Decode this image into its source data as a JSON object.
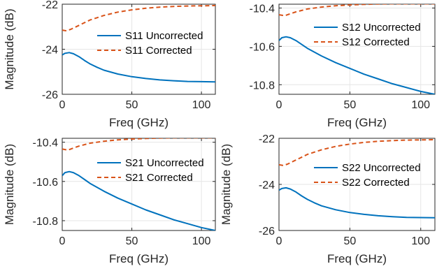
{
  "colors": {
    "uncorrected": "#0072BD",
    "corrected": "#D95319",
    "axis": "#262626",
    "grid": "#e6e6e6"
  },
  "chart_data": [
    {
      "type": "line",
      "xlabel": "Freq (GHz)",
      "ylabel": "Magnitude (dB)",
      "xlim": [
        0,
        110
      ],
      "ylim": [
        -26,
        -22
      ],
      "xticks": [
        0,
        50,
        100
      ],
      "yticks": [
        -26,
        -24,
        -22
      ],
      "grid": true,
      "legend_position": "upper-middle",
      "series": [
        {
          "name": "S11 Uncorrected",
          "style": "solid",
          "x": [
            0,
            2,
            5,
            8,
            12,
            16,
            20,
            25,
            30,
            40,
            50,
            60,
            70,
            80,
            90,
            100,
            110
          ],
          "y": [
            -24.25,
            -24.18,
            -24.15,
            -24.2,
            -24.33,
            -24.5,
            -24.65,
            -24.8,
            -24.93,
            -25.1,
            -25.22,
            -25.3,
            -25.36,
            -25.4,
            -25.43,
            -25.44,
            -25.45
          ]
        },
        {
          "name": "S11 Corrected",
          "style": "dashed",
          "x": [
            0,
            3,
            6,
            10,
            15,
            20,
            30,
            40,
            50,
            60,
            70,
            80,
            90,
            100,
            110
          ],
          "y": [
            -23.15,
            -23.18,
            -23.12,
            -23.0,
            -22.85,
            -22.7,
            -22.5,
            -22.35,
            -22.25,
            -22.18,
            -22.13,
            -22.1,
            -22.08,
            -22.07,
            -22.06
          ]
        }
      ]
    },
    {
      "type": "line",
      "xlabel": "Freq (GHz)",
      "ylabel": "",
      "xlim": [
        0,
        110
      ],
      "ylim": [
        -10.85,
        -10.38
      ],
      "xticks": [
        0,
        50,
        100
      ],
      "yticks": [
        -10.8,
        -10.6,
        -10.4
      ],
      "grid": true,
      "legend_position": "upper-middle",
      "series": [
        {
          "name": "S12 Uncorrected",
          "style": "solid",
          "x": [
            0,
            2,
            5,
            8,
            12,
            16,
            20,
            30,
            40,
            50,
            60,
            70,
            80,
            90,
            100,
            110
          ],
          "y": [
            -10.57,
            -10.555,
            -10.55,
            -10.555,
            -10.57,
            -10.59,
            -10.61,
            -10.65,
            -10.685,
            -10.715,
            -10.745,
            -10.77,
            -10.795,
            -10.815,
            -10.835,
            -10.85
          ]
        },
        {
          "name": "S12 Corrected",
          "style": "dashed",
          "x": [
            0,
            4,
            8,
            12,
            20,
            30,
            40,
            50,
            60,
            70,
            80,
            90,
            100,
            110
          ],
          "y": [
            -10.435,
            -10.44,
            -10.43,
            -10.42,
            -10.405,
            -10.395,
            -10.388,
            -10.384,
            -10.381,
            -10.379,
            -10.378,
            -10.378,
            -10.378,
            -10.378
          ]
        }
      ]
    },
    {
      "type": "line",
      "xlabel": "Freq (GHz)",
      "ylabel": "Magnitude (dB)",
      "xlim": [
        0,
        110
      ],
      "ylim": [
        -10.85,
        -10.38
      ],
      "xticks": [
        0,
        50,
        100
      ],
      "yticks": [
        -10.8,
        -10.6,
        -10.4
      ],
      "grid": true,
      "legend_position": "upper-middle",
      "series": [
        {
          "name": "S21 Uncorrected",
          "style": "solid",
          "x": [
            0,
            2,
            5,
            8,
            12,
            16,
            20,
            30,
            40,
            50,
            60,
            70,
            80,
            90,
            100,
            110
          ],
          "y": [
            -10.57,
            -10.555,
            -10.55,
            -10.555,
            -10.57,
            -10.59,
            -10.61,
            -10.65,
            -10.685,
            -10.715,
            -10.745,
            -10.77,
            -10.795,
            -10.815,
            -10.835,
            -10.85
          ]
        },
        {
          "name": "S21 Corrected",
          "style": "dashed",
          "x": [
            0,
            4,
            8,
            12,
            20,
            30,
            40,
            50,
            60,
            70,
            80,
            90,
            100,
            110
          ],
          "y": [
            -10.435,
            -10.44,
            -10.43,
            -10.42,
            -10.405,
            -10.395,
            -10.388,
            -10.384,
            -10.381,
            -10.379,
            -10.378,
            -10.378,
            -10.378,
            -10.378
          ]
        }
      ]
    },
    {
      "type": "line",
      "xlabel": "Freq (GHz)",
      "ylabel": "Magnitude (dB)",
      "xlim": [
        0,
        110
      ],
      "ylim": [
        -26,
        -22
      ],
      "xticks": [
        0,
        50,
        100
      ],
      "yticks": [
        -26,
        -24,
        -22
      ],
      "grid": true,
      "legend_position": "upper-middle",
      "series": [
        {
          "name": "S22 Uncorrected",
          "style": "solid",
          "x": [
            0,
            2,
            5,
            8,
            12,
            16,
            20,
            25,
            30,
            40,
            50,
            60,
            70,
            80,
            90,
            100,
            110
          ],
          "y": [
            -24.25,
            -24.18,
            -24.15,
            -24.2,
            -24.33,
            -24.5,
            -24.65,
            -24.8,
            -24.93,
            -25.1,
            -25.22,
            -25.3,
            -25.36,
            -25.4,
            -25.43,
            -25.44,
            -25.45
          ]
        },
        {
          "name": "S22 Corrected",
          "style": "dashed",
          "x": [
            0,
            3,
            6,
            10,
            15,
            20,
            30,
            40,
            50,
            60,
            70,
            80,
            90,
            100,
            110
          ],
          "y": [
            -23.15,
            -23.18,
            -23.12,
            -23.0,
            -22.85,
            -22.7,
            -22.5,
            -22.35,
            -22.25,
            -22.18,
            -22.13,
            -22.1,
            -22.08,
            -22.07,
            -22.06
          ]
        }
      ]
    }
  ]
}
